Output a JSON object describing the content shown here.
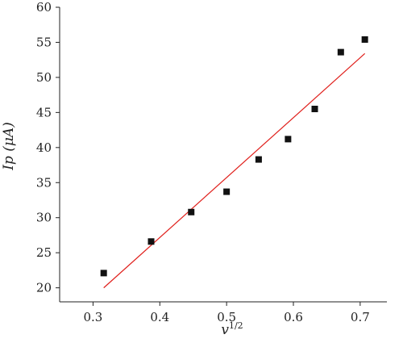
{
  "chart_data": {
    "type": "scatter",
    "title": "",
    "xlabel": "v",
    "xlabel_superscript": "1/2",
    "ylabel": "Ip (μA)",
    "xlim": [
      0.25,
      0.74
    ],
    "ylim": [
      18,
      60
    ],
    "xticks": [
      0.3,
      0.4,
      0.5,
      0.6,
      0.7
    ],
    "xtick_labels": [
      "0.3",
      "0.4",
      "0.5",
      "0.6",
      "0.7"
    ],
    "yticks": [
      20,
      25,
      30,
      35,
      40,
      45,
      50,
      55,
      60
    ],
    "ytick_labels": [
      "20",
      "25",
      "30",
      "35",
      "40",
      "45",
      "50",
      "55",
      "60"
    ],
    "grid": false,
    "series": [
      {
        "marker": "square",
        "color": "#111111",
        "x": [
          0.316,
          0.387,
          0.447,
          0.5,
          0.548,
          0.592,
          0.632,
          0.671,
          0.707
        ],
        "y": [
          22.1,
          26.6,
          30.8,
          33.7,
          38.3,
          41.2,
          45.5,
          53.6,
          55.4
        ]
      },
      {
        "kind": "fit-line",
        "color": "#e0201c",
        "x": [
          0.316,
          0.707
        ],
        "y": [
          20.0,
          53.4
        ]
      }
    ]
  }
}
